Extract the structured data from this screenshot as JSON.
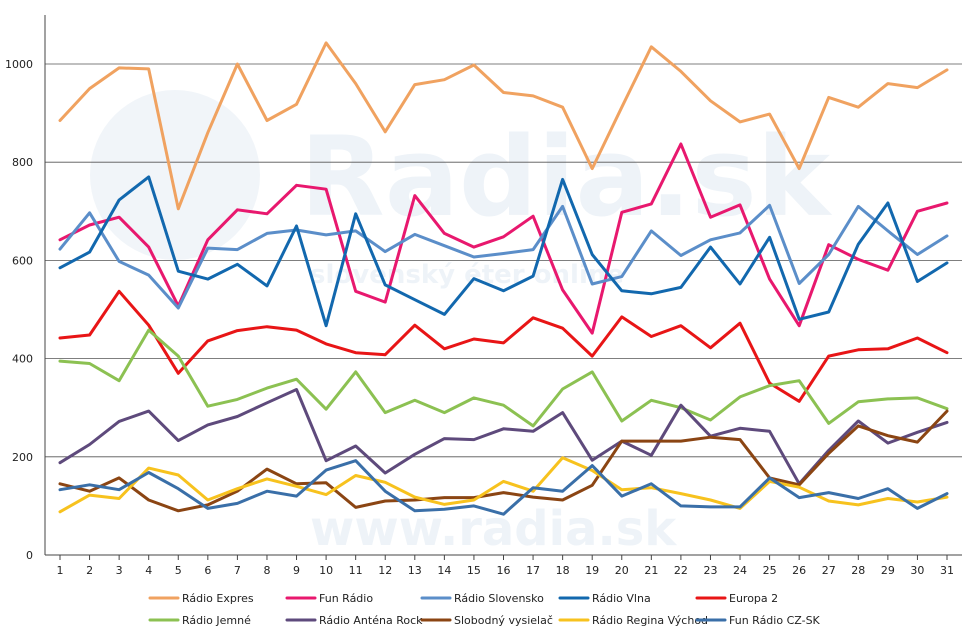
{
  "chart_data": {
    "type": "line",
    "watermark": {
      "main": "Radia.sk",
      "sub": "slovenský éter online",
      "footer": "www.radia.sk"
    },
    "x": [
      1,
      2,
      3,
      4,
      5,
      6,
      7,
      8,
      9,
      10,
      11,
      12,
      13,
      14,
      15,
      16,
      17,
      18,
      19,
      20,
      21,
      22,
      23,
      24,
      25,
      26,
      27,
      28,
      29,
      30,
      31
    ],
    "ylim": [
      0,
      1100
    ],
    "yticks": [
      0,
      200,
      400,
      600,
      800,
      1000
    ],
    "grid": true,
    "legend_position": "bottom",
    "series": [
      {
        "name": "Rádio Expres",
        "color": "#f0a260",
        "values": [
          885,
          950,
          992,
          990,
          705,
          860,
          1000,
          885,
          918,
          1043,
          960,
          862,
          958,
          968,
          998,
          942,
          935,
          912,
          787,
          912,
          1035,
          985,
          925,
          882,
          898,
          787,
          932,
          912,
          960,
          952,
          988
        ]
      },
      {
        "name": "Fun Rádio",
        "color": "#e8186e",
        "values": [
          642,
          672,
          688,
          627,
          507,
          642,
          703,
          695,
          753,
          745,
          537,
          515,
          732,
          655,
          627,
          648,
          690,
          540,
          452,
          698,
          715,
          837,
          688,
          713,
          562,
          467,
          632,
          602,
          580,
          700,
          717
        ]
      },
      {
        "name": "Rádio Slovensko",
        "color": "#5b8ec9",
        "values": [
          623,
          697,
          598,
          570,
          503,
          625,
          622,
          655,
          662,
          652,
          660,
          618,
          653,
          630,
          607,
          614,
          622,
          710,
          552,
          567,
          660,
          610,
          642,
          656,
          712,
          553,
          612,
          710,
          660,
          612,
          650
        ]
      },
      {
        "name": "Rádio Vlna",
        "color": "#1268ae",
        "values": [
          585,
          617,
          723,
          770,
          578,
          562,
          592,
          548,
          670,
          467,
          695,
          550,
          520,
          490,
          563,
          538,
          568,
          765,
          612,
          538,
          532,
          545,
          627,
          552,
          647,
          480,
          495,
          633,
          717,
          557,
          595
        ]
      },
      {
        "name": "Europa 2",
        "color": "#e81516",
        "values": [
          442,
          448,
          537,
          468,
          370,
          436,
          457,
          465,
          458,
          430,
          412,
          408,
          468,
          420,
          440,
          432,
          483,
          462,
          405,
          485,
          445,
          467,
          422,
          472,
          350,
          313,
          405,
          418,
          420,
          442,
          412
        ]
      },
      {
        "name": "Rádio Jemné",
        "color": "#8cc152",
        "values": [
          395,
          390,
          355,
          458,
          405,
          303,
          317,
          340,
          358,
          297,
          373,
          290,
          315,
          290,
          320,
          305,
          263,
          338,
          373,
          273,
          315,
          300,
          275,
          322,
          345,
          355,
          268,
          312,
          318,
          320,
          298
        ]
      },
      {
        "name": "Rádio Anténa Rock",
        "color": "#5e4a7c",
        "values": [
          188,
          225,
          272,
          293,
          233,
          265,
          282,
          310,
          337,
          192,
          222,
          167,
          205,
          237,
          235,
          257,
          252,
          290,
          193,
          232,
          203,
          305,
          242,
          258,
          252,
          145,
          213,
          273,
          228,
          250,
          270
        ]
      },
      {
        "name": "Slobodný vysielač",
        "color": "#8b4513",
        "values": [
          145,
          130,
          157,
          112,
          90,
          102,
          130,
          175,
          145,
          147,
          97,
          110,
          112,
          117,
          117,
          127,
          118,
          112,
          142,
          232,
          232,
          232,
          240,
          235,
          157,
          143,
          207,
          263,
          243,
          230,
          293
        ]
      },
      {
        "name": "Rádio Regina Východ",
        "color": "#f7c21e",
        "values": [
          88,
          122,
          115,
          177,
          163,
          112,
          135,
          155,
          140,
          123,
          162,
          148,
          118,
          103,
          112,
          150,
          130,
          198,
          172,
          133,
          137,
          125,
          112,
          95,
          150,
          138,
          110,
          102,
          115,
          108,
          118
        ]
      },
      {
        "name": "Fun Rádio CZ-SK",
        "color": "#3a6fa8",
        "values": [
          133,
          143,
          133,
          168,
          135,
          95,
          105,
          130,
          120,
          173,
          192,
          130,
          90,
          93,
          100,
          83,
          137,
          130,
          182,
          120,
          145,
          100,
          98,
          98,
          157,
          117,
          127,
          115,
          135,
          95,
          125
        ]
      }
    ]
  }
}
